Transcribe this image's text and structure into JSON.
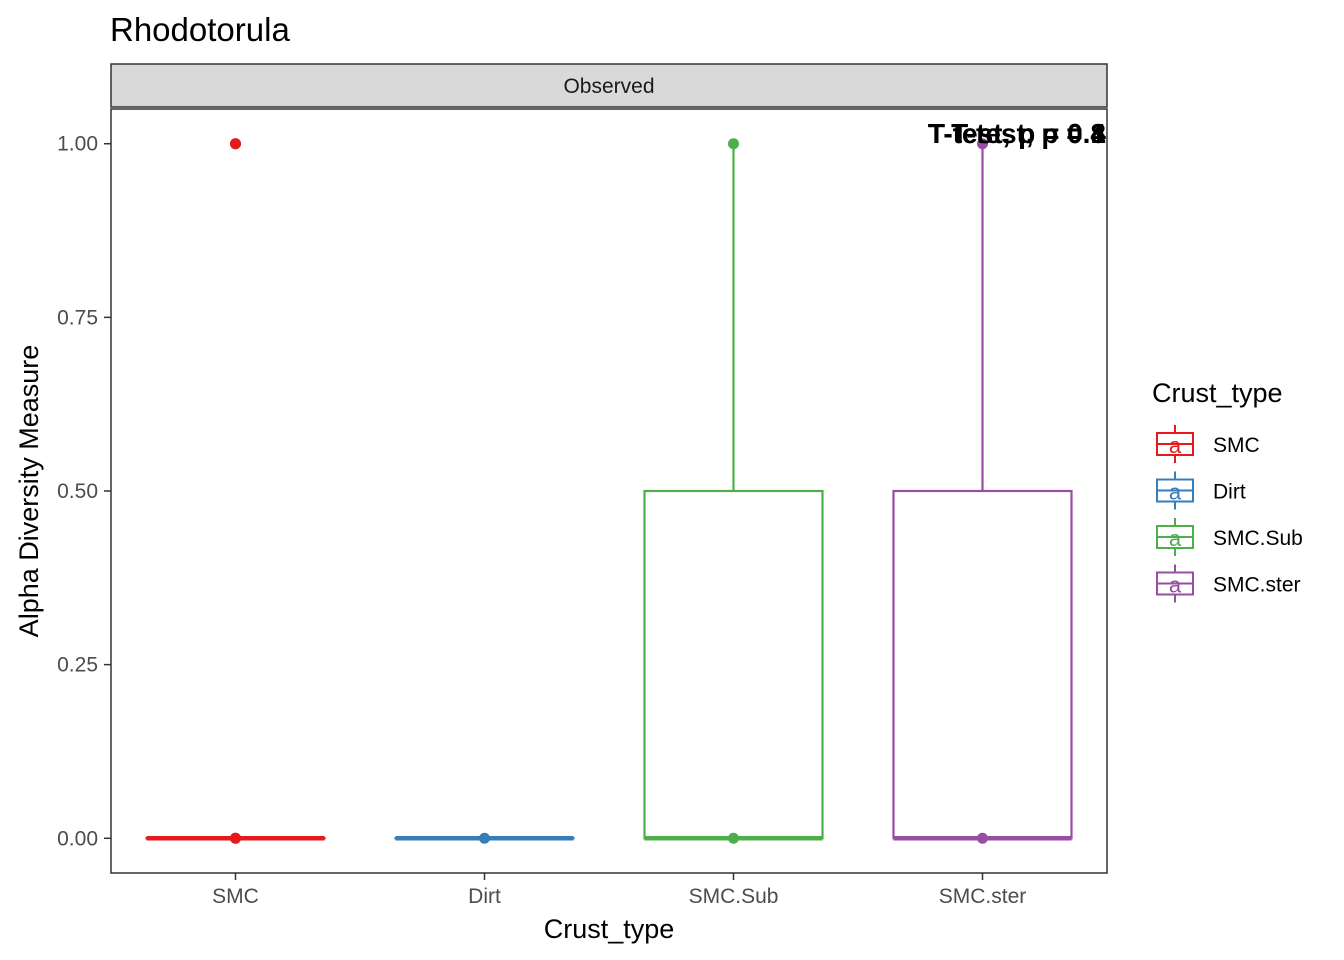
{
  "chart_data": {
    "type": "box",
    "title": "Rhodotorula",
    "facet_label": "Observed",
    "xlabel": "Crust_type",
    "ylabel": "Alpha Diversity Measure",
    "ylim": [
      -0.05,
      1.05
    ],
    "yticks": [
      0,
      0.25,
      0.5,
      0.75,
      1
    ],
    "ytick_labels": [
      "0.00",
      "0.25",
      "0.50",
      "0.75",
      "1.00"
    ],
    "categories": [
      "SMC",
      "Dirt",
      "SMC.Sub",
      "SMC.ster"
    ],
    "colors": {
      "SMC": "#e41a1c",
      "Dirt": "#377eb8",
      "SMC.Sub": "#4daf4a",
      "SMC.ster": "#984ea3"
    },
    "boxes": [
      {
        "category": "SMC",
        "q1": 0,
        "median": 0,
        "q3": 0,
        "whisker_low": 0,
        "whisker_high": 0,
        "outliers": [
          1
        ]
      },
      {
        "category": "Dirt",
        "q1": 0,
        "median": 0,
        "q3": 0,
        "whisker_low": 0,
        "whisker_high": 0,
        "outliers": []
      },
      {
        "category": "SMC.Sub",
        "q1": 0,
        "median": 0,
        "q3": 0.5,
        "whisker_low": 0,
        "whisker_high": 1,
        "outliers": []
      },
      {
        "category": "SMC.ster",
        "q1": 0,
        "median": 0,
        "q3": 0.5,
        "whisker_low": 0,
        "whisker_high": 1,
        "outliers": []
      }
    ],
    "points": [
      {
        "category": "SMC",
        "values": [
          1,
          0,
          0
        ]
      },
      {
        "category": "Dirt",
        "values": [
          0
        ]
      },
      {
        "category": "SMC.Sub",
        "values": [
          1,
          0
        ]
      },
      {
        "category": "SMC.ster",
        "values": [
          1,
          0
        ]
      }
    ],
    "annotations": [
      "T-test, p = 0.4",
      "T-test, p = 0.8",
      "T-test, p = 1"
    ],
    "legend": {
      "title": "Crust_type",
      "key_letter": "a",
      "position": "right",
      "items": [
        "SMC",
        "Dirt",
        "SMC.Sub",
        "SMC.ster"
      ]
    },
    "grid": false
  }
}
